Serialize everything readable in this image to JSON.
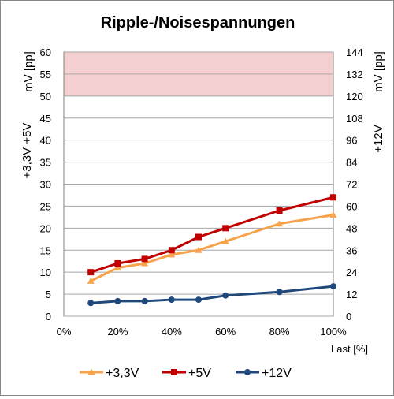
{
  "chart_data": {
    "type": "line",
    "title": "Ripple-/Noisespannungen",
    "xlabel": "Last [%]",
    "ylabel_left": [
      "+3,3V  +5V",
      "mV [pp]"
    ],
    "ylabel_right": [
      "+12V",
      "mV [pp]"
    ],
    "x": [
      10,
      20,
      30,
      40,
      50,
      60,
      80,
      100
    ],
    "xlim": [
      0,
      100
    ],
    "xticks": [
      0,
      20,
      40,
      60,
      80,
      100
    ],
    "xtick_labels": [
      "0%",
      "20%",
      "40%",
      "60%",
      "80%",
      "100%"
    ],
    "ylim_left": [
      0,
      60
    ],
    "yticks_left": [
      0,
      5,
      10,
      15,
      20,
      25,
      30,
      35,
      40,
      45,
      50,
      55,
      60
    ],
    "ylim_right": [
      0,
      144
    ],
    "yticks_right": [
      0,
      12,
      24,
      36,
      48,
      60,
      72,
      84,
      96,
      108,
      120,
      132,
      144
    ],
    "limit_band": {
      "from": 50,
      "to": 60,
      "axis": "left",
      "color": "#f5d0d0"
    },
    "grid": true,
    "legend_position": "bottom",
    "series": [
      {
        "name": "+3,3V",
        "axis": "left",
        "color": "#f8a34c",
        "marker": "triangle",
        "values": [
          8,
          11,
          12,
          14,
          15,
          17,
          21,
          23
        ]
      },
      {
        "name": "+5V",
        "axis": "left",
        "color": "#c00000",
        "marker": "square",
        "values": [
          10,
          12,
          13,
          15,
          18,
          20,
          24,
          27
        ]
      },
      {
        "name": "+12V",
        "axis": "right",
        "color": "#1f497d",
        "marker": "circle",
        "values": [
          7.2,
          8.2,
          8.2,
          9,
          9,
          11.3,
          13.2,
          16.3
        ]
      }
    ]
  }
}
